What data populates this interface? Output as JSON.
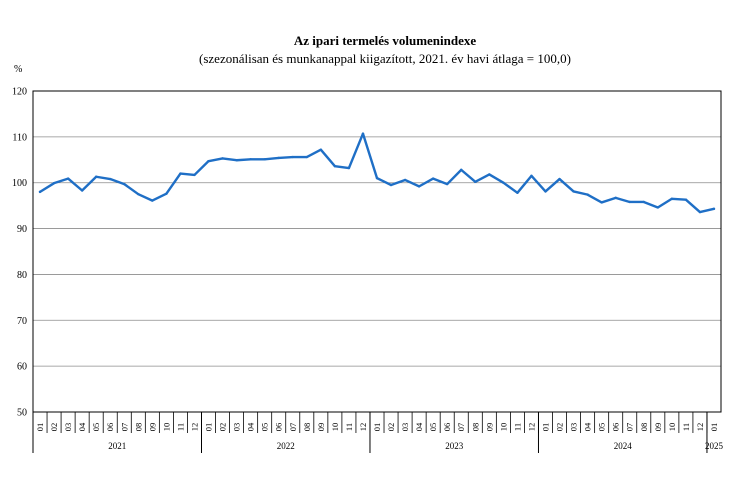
{
  "chart_data": {
    "type": "line",
    "title": "Az ipari termelés volumenindexe",
    "subtitle": "(szezonálisan és munkanappal kiigazított, 2021. év havi átlaga = 100,0)",
    "ylabel": "%",
    "xlabel": "",
    "ylim": [
      50,
      120
    ],
    "y_ticks": [
      "50",
      "60",
      "70",
      "80",
      "90",
      "100",
      "110",
      "120"
    ],
    "grid": true,
    "years": [
      {
        "label": "2021",
        "months": 12
      },
      {
        "label": "2022",
        "months": 12
      },
      {
        "label": "2023",
        "months": 12
      },
      {
        "label": "2024",
        "months": 12
      },
      {
        "label": "2025",
        "months": 1
      }
    ],
    "categories": [
      "01",
      "02",
      "03",
      "04",
      "05",
      "06",
      "07",
      "08",
      "09",
      "10",
      "11",
      "12",
      "01",
      "02",
      "03",
      "04",
      "05",
      "06",
      "07",
      "08",
      "09",
      "10",
      "11",
      "12",
      "01",
      "02",
      "03",
      "04",
      "05",
      "06",
      "07",
      "08",
      "09",
      "10",
      "11",
      "12",
      "01",
      "02",
      "03",
      "04",
      "05",
      "06",
      "07",
      "08",
      "09",
      "10",
      "11",
      "12",
      "01"
    ],
    "series": [
      {
        "color": "#1f6fc6",
        "values": [
          98.0,
          99.9,
          100.9,
          98.3,
          101.3,
          100.8,
          99.7,
          97.5,
          96.1,
          97.6,
          102.0,
          101.7,
          104.7,
          105.3,
          104.9,
          105.1,
          105.1,
          105.4,
          105.6,
          105.6,
          107.2,
          103.6,
          103.2,
          110.7,
          101.0,
          99.5,
          100.6,
          99.2,
          100.9,
          99.7,
          102.8,
          100.2,
          101.8,
          100.0,
          97.8,
          101.5,
          98.1,
          100.8,
          98.1,
          97.4,
          95.7,
          96.7,
          95.8,
          95.8,
          94.6,
          96.5,
          96.3,
          93.6,
          94.3
        ]
      }
    ]
  }
}
